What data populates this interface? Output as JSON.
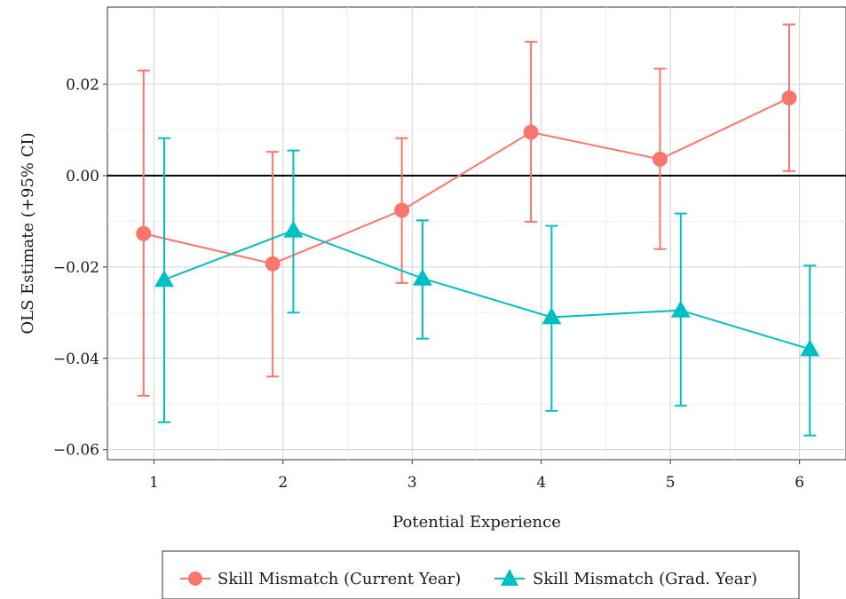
{
  "chart_data": {
    "type": "line",
    "title": "",
    "xlabel": "Potential Experience",
    "ylabel": "OLS Estimate (+95% CI)",
    "x": [
      1,
      2,
      3,
      4,
      5,
      6
    ],
    "xticks": [
      "1",
      "2",
      "3",
      "4",
      "5",
      "6"
    ],
    "yticks": [
      {
        "value": 0.02,
        "label": "0.02"
      },
      {
        "value": 0.0,
        "label": "0.00"
      },
      {
        "value": -0.02,
        "label": "−0.02"
      },
      {
        "value": -0.04,
        "label": "−0.04"
      },
      {
        "value": -0.06,
        "label": "−0.06"
      }
    ],
    "xlim": [
      0.64,
      6.36
    ],
    "ylim": [
      -0.0622,
      0.0369
    ],
    "grid": true,
    "zero_line": true,
    "legend_position": "bottom",
    "series": [
      {
        "name": "Skill Mismatch (Current Year)",
        "color": "#F8766D",
        "marker": "circle",
        "x_offset": -0.08,
        "values": [
          -0.0127,
          -0.0193,
          -0.0076,
          0.0095,
          0.0036,
          0.017
        ],
        "ci_low": [
          -0.0482,
          -0.044,
          -0.0235,
          -0.0101,
          -0.0161,
          0.001
        ],
        "ci_high": [
          0.023,
          0.0052,
          0.0082,
          0.0293,
          0.0234,
          0.0331
        ]
      },
      {
        "name": "Skill Mismatch (Grad. Year)",
        "color": "#00BFC4",
        "marker": "triangle",
        "x_offset": 0.08,
        "values": [
          -0.0228,
          -0.012,
          -0.0225,
          -0.031,
          -0.0295,
          -0.038
        ],
        "ci_low": [
          -0.054,
          -0.03,
          -0.0357,
          -0.0515,
          -0.0504,
          -0.0569
        ],
        "ci_high": [
          0.0082,
          0.0055,
          -0.0098,
          -0.011,
          -0.0083,
          -0.0197
        ]
      }
    ]
  }
}
